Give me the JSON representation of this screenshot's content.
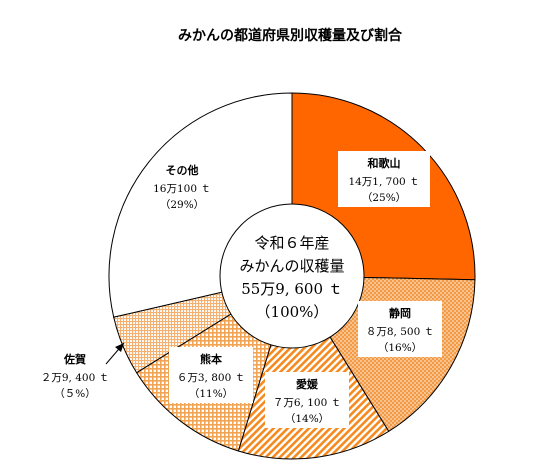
{
  "chart_data": {
    "type": "pie",
    "title": "みかんの都道府県別収穫量及び割合",
    "center_label": [
      "令和６年産",
      "みかんの収穫量",
      "55万9, 600 ｔ",
      "（100%）"
    ],
    "slices": [
      {
        "name": "和歌山",
        "value": 141700,
        "value_text": "14万1, 700 ｔ",
        "percent": 25,
        "percent_text": "（25%）",
        "color": "#ff6600",
        "pattern": "solid"
      },
      {
        "name": "静岡",
        "value": 88500,
        "value_text": "８万8, 500 ｔ",
        "percent": 16,
        "percent_text": "（16%）",
        "color": "#f0953a",
        "pattern": "dots"
      },
      {
        "name": "愛媛",
        "value": 76100,
        "value_text": "７万6, 100 ｔ",
        "percent": 14,
        "percent_text": "（14%）",
        "color": "#f58a1f",
        "pattern": "diagonal"
      },
      {
        "name": "熊本",
        "value": 63800,
        "value_text": "６万3, 800 ｔ",
        "percent": 11,
        "percent_text": "（11%）",
        "color": "#f2a455",
        "pattern": "grid"
      },
      {
        "name": "佐賀",
        "value": 29400,
        "value_text": "２万9, 400 ｔ",
        "percent": 5,
        "percent_text": "（５%）",
        "color": "#f4b071",
        "pattern": "smallgrid"
      },
      {
        "name": "その他",
        "value": 160100,
        "value_text": "16万100 ｔ",
        "percent": 29,
        "percent_text": "（29%）",
        "color": "#ffffff",
        "pattern": "none"
      }
    ]
  }
}
